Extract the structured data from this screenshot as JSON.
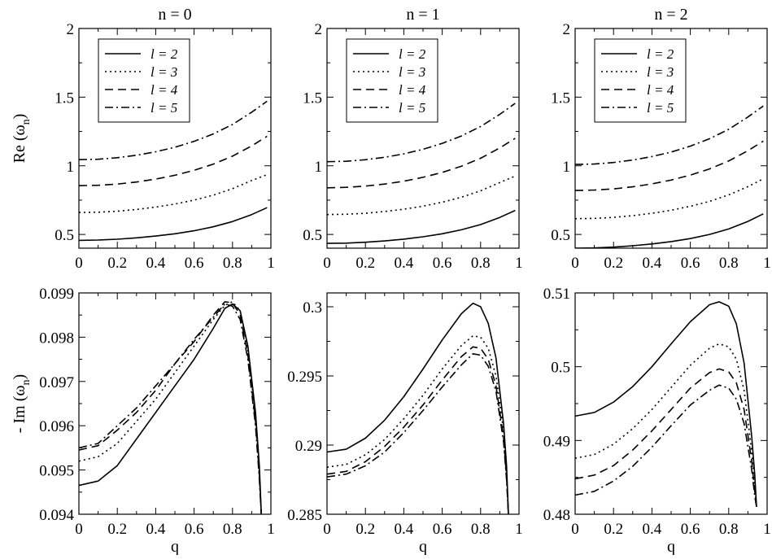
{
  "chart_data": [
    {
      "type": "line",
      "column": "n = 0",
      "title": "n = 0",
      "xlabel": "",
      "ylabel": "Re (ω_n)",
      "ylabel_main": "Re (ω",
      "ylabel_sub": "n",
      "ylabel_end": ")",
      "xlim": [
        0,
        1
      ],
      "ylim": [
        0.4,
        2
      ],
      "xticks": [
        0,
        0.2,
        0.4,
        0.6,
        0.8,
        1
      ],
      "xticklabels": [
        "0",
        "0.2",
        "0.4",
        "0.6",
        "0.8",
        "1"
      ],
      "yticks": [
        0.5,
        1,
        1.5,
        2
      ],
      "yticklabels": [
        "0.5",
        "1",
        "1.5",
        "2"
      ],
      "legend": {
        "position": "top-left",
        "entries": [
          "l = 2",
          "l = 3",
          "l = 4",
          "l = 5"
        ]
      },
      "x": [
        0,
        0.1,
        0.2,
        0.3,
        0.4,
        0.5,
        0.6,
        0.7,
        0.8,
        0.9,
        0.98
      ],
      "series": [
        {
          "name": "l = 2",
          "style": "solid",
          "values": [
            0.457,
            0.459,
            0.465,
            0.475,
            0.488,
            0.505,
            0.527,
            0.556,
            0.594,
            0.645,
            0.695
          ]
        },
        {
          "name": "l = 3",
          "style": "dotted",
          "values": [
            0.66,
            0.662,
            0.669,
            0.682,
            0.699,
            0.721,
            0.75,
            0.786,
            0.833,
            0.893,
            0.935
          ]
        },
        {
          "name": "l = 4",
          "style": "dashed",
          "values": [
            0.855,
            0.858,
            0.867,
            0.882,
            0.903,
            0.931,
            0.967,
            1.012,
            1.07,
            1.145,
            1.215
          ]
        },
        {
          "name": "l = 5",
          "style": "dashdot",
          "values": [
            1.045,
            1.048,
            1.059,
            1.077,
            1.102,
            1.135,
            1.178,
            1.232,
            1.301,
            1.39,
            1.47
          ]
        }
      ]
    },
    {
      "type": "line",
      "column": "n = 1",
      "title": "n = 1",
      "xlabel": "",
      "ylabel": "",
      "xlim": [
        0,
        1
      ],
      "ylim": [
        0.4,
        2
      ],
      "xticks": [
        0,
        0.2,
        0.4,
        0.6,
        0.8,
        1
      ],
      "xticklabels": [
        "0",
        "0.2",
        "0.4",
        "0.6",
        "0.8",
        "1"
      ],
      "yticks": [
        0.5,
        1,
        1.5,
        2
      ],
      "yticklabels": [
        "0.5",
        "1",
        "1.5",
        "2"
      ],
      "legend": {
        "position": "top-left",
        "entries": [
          "l = 2",
          "l = 3",
          "l = 4",
          "l = 5"
        ]
      },
      "x": [
        0,
        0.1,
        0.2,
        0.3,
        0.4,
        0.5,
        0.6,
        0.7,
        0.8,
        0.9,
        0.98
      ],
      "series": [
        {
          "name": "l = 2",
          "style": "solid",
          "values": [
            0.435,
            0.437,
            0.443,
            0.453,
            0.466,
            0.483,
            0.505,
            0.534,
            0.572,
            0.624,
            0.675
          ]
        },
        {
          "name": "l = 3",
          "style": "dotted",
          "values": [
            0.645,
            0.647,
            0.654,
            0.667,
            0.684,
            0.706,
            0.735,
            0.771,
            0.818,
            0.878,
            0.925
          ]
        },
        {
          "name": "l = 4",
          "style": "dashed",
          "values": [
            0.84,
            0.843,
            0.852,
            0.867,
            0.888,
            0.916,
            0.952,
            0.997,
            1.055,
            1.13,
            1.2
          ]
        },
        {
          "name": "l = 5",
          "style": "dashdot",
          "values": [
            1.03,
            1.033,
            1.044,
            1.062,
            1.087,
            1.12,
            1.163,
            1.217,
            1.286,
            1.375,
            1.455
          ]
        }
      ]
    },
    {
      "type": "line",
      "column": "n = 2",
      "title": "n = 2",
      "xlabel": "",
      "ylabel": "",
      "xlim": [
        0,
        1
      ],
      "ylim": [
        0.4,
        2
      ],
      "xticks": [
        0,
        0.2,
        0.4,
        0.6,
        0.8,
        1
      ],
      "xticklabels": [
        "0",
        "0.2",
        "0.4",
        "0.6",
        "0.8",
        "1"
      ],
      "yticks": [
        0.5,
        1,
        1.5,
        2
      ],
      "yticklabels": [
        "0.5",
        "1",
        "1.5",
        "2"
      ],
      "legend": {
        "position": "top-left",
        "entries": [
          "l = 2",
          "l = 3",
          "l = 4",
          "l = 5"
        ]
      },
      "x": [
        0,
        0.1,
        0.2,
        0.3,
        0.4,
        0.5,
        0.6,
        0.7,
        0.8,
        0.9,
        0.98
      ],
      "series": [
        {
          "name": "l = 2",
          "style": "solid",
          "values": [
            0.4,
            0.402,
            0.408,
            0.418,
            0.431,
            0.448,
            0.47,
            0.5,
            0.54,
            0.595,
            0.65
          ]
        },
        {
          "name": "l = 3",
          "style": "dotted",
          "values": [
            0.615,
            0.617,
            0.624,
            0.637,
            0.654,
            0.676,
            0.705,
            0.741,
            0.788,
            0.848,
            0.905
          ]
        },
        {
          "name": "l = 4",
          "style": "dashed",
          "values": [
            0.82,
            0.823,
            0.832,
            0.847,
            0.868,
            0.896,
            0.932,
            0.977,
            1.035,
            1.11,
            1.18
          ]
        },
        {
          "name": "l = 5",
          "style": "dashdot",
          "values": [
            1.01,
            1.013,
            1.024,
            1.042,
            1.067,
            1.1,
            1.143,
            1.197,
            1.266,
            1.355,
            1.435
          ]
        }
      ]
    },
    {
      "type": "line",
      "column": "n = 0",
      "title": "",
      "xlabel": "q",
      "ylabel": "- Im (ω_n)",
      "ylabel_main": "- Im (ω",
      "ylabel_sub": "n",
      "ylabel_end": ")",
      "xlim": [
        0,
        1
      ],
      "ylim": [
        0.094,
        0.099
      ],
      "xticks": [
        0,
        0.2,
        0.4,
        0.6,
        0.8,
        1
      ],
      "xticklabels": [
        "0",
        "0.2",
        "0.4",
        "0.6",
        "0.8",
        "1"
      ],
      "yticks": [
        0.094,
        0.095,
        0.096,
        0.097,
        0.098,
        0.099
      ],
      "yticklabels": [
        "0.094",
        "0.095",
        "0.096",
        "0.097",
        "0.098",
        "0.099"
      ],
      "x": [
        0,
        0.1,
        0.2,
        0.3,
        0.4,
        0.5,
        0.6,
        0.7,
        0.76,
        0.8,
        0.84,
        0.88,
        0.92,
        0.94,
        0.95
      ],
      "series": [
        {
          "name": "l = 2",
          "style": "solid",
          "values": [
            0.09465,
            0.09475,
            0.0951,
            0.0957,
            0.0963,
            0.0969,
            0.0975,
            0.0982,
            0.09865,
            0.09875,
            0.0986,
            0.0978,
            0.0963,
            0.0951,
            0.094
          ]
        },
        {
          "name": "l = 3",
          "style": "dotted",
          "values": [
            0.0952,
            0.0953,
            0.0956,
            0.0961,
            0.0966,
            0.0972,
            0.0978,
            0.0984,
            0.09872,
            0.0988,
            0.0986,
            0.0977,
            0.0962,
            0.095,
            0.094
          ]
        },
        {
          "name": "l = 4",
          "style": "dashed",
          "values": [
            0.09545,
            0.09555,
            0.0959,
            0.0963,
            0.0968,
            0.0974,
            0.0979,
            0.0985,
            0.0988,
            0.09878,
            0.0985,
            0.0976,
            0.0961,
            0.0949,
            0.094
          ]
        },
        {
          "name": "l = 5",
          "style": "dashdot",
          "values": [
            0.0955,
            0.0956,
            0.096,
            0.0964,
            0.0969,
            0.0974,
            0.09795,
            0.09845,
            0.09875,
            0.0987,
            0.0984,
            0.0975,
            0.096,
            0.0948,
            0.094
          ]
        }
      ]
    },
    {
      "type": "line",
      "column": "n = 1",
      "title": "",
      "xlabel": "q",
      "ylabel": "",
      "xlim": [
        0,
        1
      ],
      "ylim": [
        0.285,
        0.301
      ],
      "xticks": [
        0,
        0.2,
        0.4,
        0.6,
        0.8,
        1
      ],
      "xticklabels": [
        "0",
        "0.2",
        "0.4",
        "0.6",
        "0.8",
        "1"
      ],
      "yticks": [
        0.285,
        0.29,
        0.295,
        0.3
      ],
      "yticklabels": [
        "0.285",
        "0.29",
        "0.295",
        "0.3"
      ],
      "x": [
        0,
        0.1,
        0.2,
        0.3,
        0.4,
        0.5,
        0.6,
        0.7,
        0.76,
        0.8,
        0.84,
        0.88,
        0.92,
        0.935,
        0.945
      ],
      "series": [
        {
          "name": "l = 2",
          "style": "solid",
          "values": [
            0.2895,
            0.2897,
            0.2905,
            0.2918,
            0.2935,
            0.2955,
            0.2976,
            0.2995,
            0.30025,
            0.3,
            0.2988,
            0.2963,
            0.2915,
            0.2885,
            0.285
          ]
        },
        {
          "name": "l = 3",
          "style": "dotted",
          "values": [
            0.2884,
            0.2886,
            0.2893,
            0.2904,
            0.2919,
            0.2936,
            0.2955,
            0.2972,
            0.2979,
            0.2978,
            0.297,
            0.295,
            0.291,
            0.288,
            0.285
          ]
        },
        {
          "name": "l = 4",
          "style": "dashed",
          "values": [
            0.2879,
            0.2881,
            0.2888,
            0.2899,
            0.2913,
            0.2929,
            0.2947,
            0.2964,
            0.2971,
            0.297,
            0.2962,
            0.2943,
            0.2905,
            0.2877,
            0.285
          ]
        },
        {
          "name": "l = 5",
          "style": "dashdot",
          "values": [
            0.2877,
            0.2879,
            0.2885,
            0.2895,
            0.2909,
            0.2925,
            0.2942,
            0.2958,
            0.2966,
            0.2965,
            0.2957,
            0.2939,
            0.2902,
            0.2875,
            0.285
          ]
        }
      ]
    },
    {
      "type": "line",
      "column": "n = 2",
      "title": "",
      "xlabel": "q",
      "ylabel": "",
      "xlim": [
        0,
        1
      ],
      "ylim": [
        0.48,
        0.51
      ],
      "xticks": [
        0,
        0.2,
        0.4,
        0.6,
        0.8,
        1
      ],
      "xticklabels": [
        "0",
        "0.2",
        "0.4",
        "0.6",
        "0.8",
        "1"
      ],
      "yticks": [
        0.48,
        0.49,
        0.5,
        0.51
      ],
      "yticklabels": [
        "0.48",
        "0.49",
        "0.5",
        "0.51"
      ],
      "x": [
        0,
        0.1,
        0.2,
        0.3,
        0.4,
        0.5,
        0.6,
        0.7,
        0.75,
        0.8,
        0.84,
        0.88,
        0.92,
        0.935,
        0.945
      ],
      "series": [
        {
          "name": "l = 2",
          "style": "solid",
          "values": [
            0.4933,
            0.4938,
            0.4952,
            0.4973,
            0.5,
            0.5031,
            0.5061,
            0.5084,
            0.5088,
            0.5082,
            0.5058,
            0.5005,
            0.4905,
            0.4855,
            0.481
          ]
        },
        {
          "name": "l = 3",
          "style": "dotted",
          "values": [
            0.4876,
            0.4881,
            0.4895,
            0.4916,
            0.4942,
            0.4972,
            0.5002,
            0.5025,
            0.5031,
            0.5027,
            0.501,
            0.4968,
            0.4885,
            0.484,
            0.481
          ]
        },
        {
          "name": "l = 4",
          "style": "dashed",
          "values": [
            0.4848,
            0.4853,
            0.4866,
            0.4887,
            0.4913,
            0.4942,
            0.4971,
            0.4992,
            0.4997,
            0.4993,
            0.4978,
            0.4942,
            0.4872,
            0.4832,
            0.481
          ]
        },
        {
          "name": "l = 5",
          "style": "dashdot",
          "values": [
            0.4826,
            0.4831,
            0.4845,
            0.4865,
            0.4891,
            0.492,
            0.4948,
            0.4968,
            0.4975,
            0.4971,
            0.4956,
            0.4923,
            0.486,
            0.4825,
            0.481
          ]
        }
      ]
    }
  ]
}
